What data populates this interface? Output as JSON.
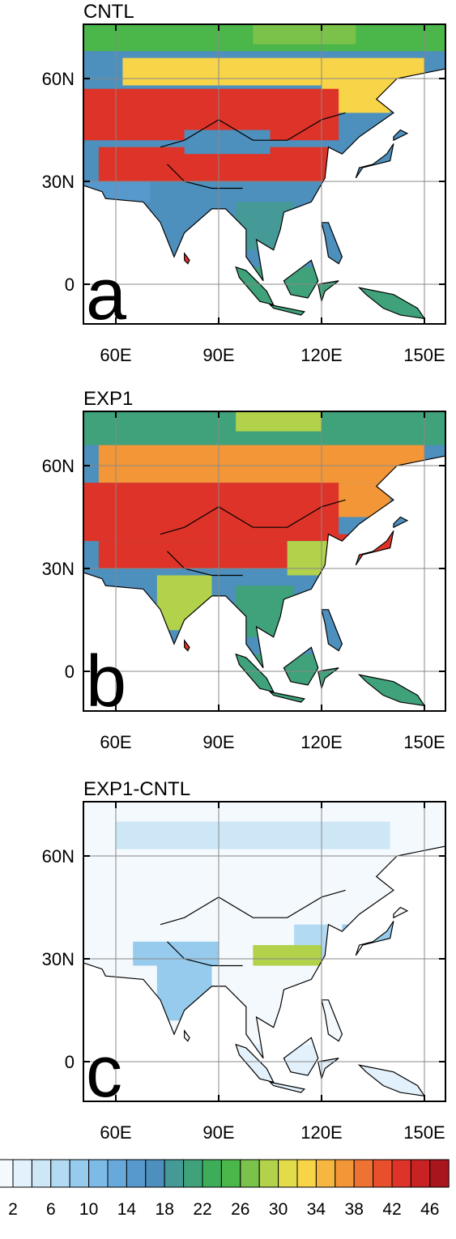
{
  "panels": [
    {
      "title": "CNTL",
      "letter": "a",
      "lat_ticks": [
        "60N",
        "30N",
        "0"
      ],
      "lon_ticks": [
        "60E",
        "90E",
        "120E",
        "150E"
      ]
    },
    {
      "title": "EXP1",
      "letter": "b",
      "lat_ticks": [
        "60N",
        "30N",
        "0"
      ],
      "lon_ticks": [
        "60E",
        "90E",
        "120E",
        "150E"
      ]
    },
    {
      "title": "EXP1-CNTL",
      "letter": "c",
      "lat_ticks": [
        "60N",
        "30N",
        "0"
      ],
      "lon_ticks": [
        "60E",
        "90E",
        "120E",
        "150E"
      ]
    }
  ],
  "colorbar": {
    "labels": [
      "2",
      "6",
      "10",
      "14",
      "18",
      "22",
      "26",
      "30",
      "34",
      "38",
      "42",
      "46"
    ],
    "colors": [
      "#f4f9fd",
      "#e2f1fb",
      "#cde7f7",
      "#b2daf3",
      "#96cbee",
      "#7dbbe6",
      "#67a9da",
      "#5799cc",
      "#4d8fbd",
      "#459a98",
      "#3fa27a",
      "#3ead5a",
      "#4bb64a",
      "#7ac24a",
      "#b1d24a",
      "#e3dc4a",
      "#f8d548",
      "#f6b640",
      "#f39638",
      "#ee7232",
      "#e8502c",
      "#de3328",
      "#c92224",
      "#a9151c"
    ]
  }
}
